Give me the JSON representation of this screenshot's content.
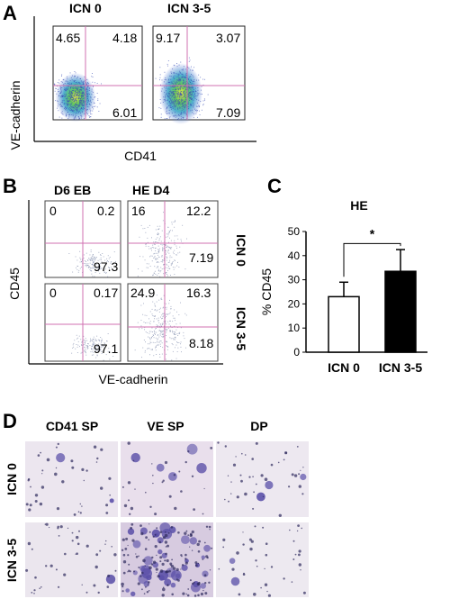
{
  "panels": {
    "A": {
      "label": "A",
      "y_axis_label": "VE-cadherin",
      "x_axis_label": "CD41",
      "plots": [
        {
          "title": "ICN 0",
          "ul": "4.65",
          "ur": "4.18",
          "lr": "6.01"
        },
        {
          "title": "ICN 3-5",
          "ul": "9.17",
          "ur": "3.07",
          "lr": "7.09"
        }
      ]
    },
    "B": {
      "label": "B",
      "y_axis_label": "CD45",
      "x_axis_label": "VE-cadherin",
      "col_titles": [
        "D6 EB",
        "HE D4"
      ],
      "row_labels": [
        "ICN 0",
        "ICN 3-5"
      ],
      "plots": [
        {
          "ul": "0",
          "ur": "0.2",
          "lr": "97.3"
        },
        {
          "ul": "16",
          "ur": "12.2",
          "lr": "7.19"
        },
        {
          "ul": "0",
          "ur": "0.17",
          "lr": "97.1"
        },
        {
          "ul": "24.9",
          "ur": "16.3",
          "lr": "8.18"
        }
      ]
    },
    "C": {
      "label": "C"
    },
    "D": {
      "label": "D",
      "col_titles": [
        "CD41 SP",
        "VE SP",
        "DP"
      ],
      "row_labels": [
        "ICN 0",
        "ICN 3-5"
      ]
    }
  },
  "chart_data": {
    "type": "bar",
    "title": "HE",
    "ylabel": "% CD45",
    "xlabel": "",
    "categories": [
      "ICN 0",
      "ICN 3-5"
    ],
    "values": [
      23,
      33.5
    ],
    "errors": [
      6,
      9
    ],
    "bar_colors": [
      "#ffffff",
      "#000000"
    ],
    "ylim": [
      0,
      50
    ],
    "yticks": [
      "0",
      "10",
      "20",
      "30",
      "40",
      "50"
    ],
    "significance": "*",
    "grid": false
  }
}
